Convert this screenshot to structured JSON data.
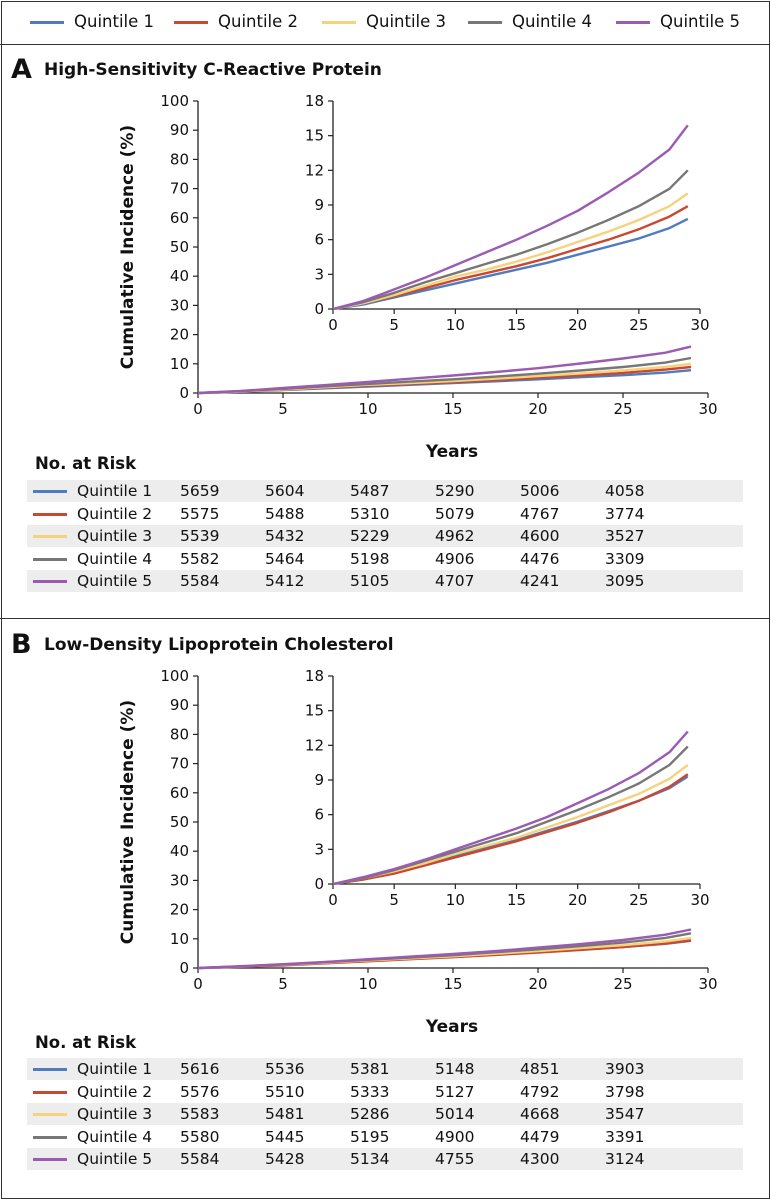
{
  "legend": [
    {
      "label": "Quintile 1",
      "color": "#4f7cc0"
    },
    {
      "label": "Quintile 2",
      "color": "#c8492f"
    },
    {
      "label": "Quintile 3",
      "color": "#f5d27e"
    },
    {
      "label": "Quintile 4",
      "color": "#777777"
    },
    {
      "label": "Quintile 5",
      "color": "#9b5bb3"
    }
  ],
  "panels": [
    {
      "letter": "A",
      "title": "High-Sensitivity C-Reactive Protein",
      "risk_title": "No. at Risk"
    },
    {
      "letter": "B",
      "title": "Low-Density Lipoprotein Cholesterol",
      "risk_title": "No. at Risk"
    }
  ],
  "chart_data": [
    {
      "type": "line",
      "title": "High-Sensitivity C-Reactive Protein",
      "xlabel": "Years",
      "ylabel": "Cumulative Incidence (%)",
      "xlim": [
        0,
        30
      ],
      "ylim": [
        0,
        100
      ],
      "xticks": [
        0,
        5,
        10,
        15,
        20,
        25,
        30
      ],
      "yticks": [
        0,
        10,
        20,
        30,
        40,
        50,
        60,
        70,
        80,
        90,
        100
      ],
      "inset": {
        "xlim": [
          0,
          30
        ],
        "ylim": [
          0,
          18
        ],
        "xticks": [
          0,
          5,
          10,
          15,
          20,
          25,
          30
        ],
        "yticks": [
          0,
          3,
          6,
          9,
          12,
          15,
          18
        ]
      },
      "x": [
        0,
        2.5,
        5,
        7.5,
        10,
        12.5,
        15,
        17.5,
        20,
        22.5,
        25,
        27.5,
        29
      ],
      "series": [
        {
          "name": "Quintile 1",
          "values": [
            0,
            0.4,
            1.0,
            1.6,
            2.2,
            2.8,
            3.4,
            4.0,
            4.7,
            5.4,
            6.1,
            7.0,
            7.8
          ]
        },
        {
          "name": "Quintile 2",
          "values": [
            0,
            0.5,
            1.1,
            1.8,
            2.5,
            3.1,
            3.7,
            4.4,
            5.2,
            6.0,
            6.9,
            8.0,
            8.9
          ]
        },
        {
          "name": "Quintile 3",
          "values": [
            0,
            0.5,
            1.2,
            2.0,
            2.8,
            3.4,
            4.1,
            4.9,
            5.8,
            6.7,
            7.7,
            8.9,
            10.0
          ]
        },
        {
          "name": "Quintile 4",
          "values": [
            0,
            0.6,
            1.4,
            2.3,
            3.1,
            3.9,
            4.7,
            5.6,
            6.6,
            7.7,
            8.9,
            10.4,
            12.0
          ]
        },
        {
          "name": "Quintile 5",
          "values": [
            0,
            0.7,
            1.7,
            2.7,
            3.8,
            4.9,
            6.0,
            7.2,
            8.5,
            10.1,
            11.8,
            13.8,
            15.9
          ]
        }
      ],
      "risk_table": {
        "rows": [
          {
            "label": "Quintile 1",
            "values": [
              "5659",
              "5604",
              "5487",
              "5290",
              "5006",
              "4058"
            ]
          },
          {
            "label": "Quintile 2",
            "values": [
              "5575",
              "5488",
              "5310",
              "5079",
              "4767",
              "3774"
            ]
          },
          {
            "label": "Quintile 3",
            "values": [
              "5539",
              "5432",
              "5229",
              "4962",
              "4600",
              "3527"
            ]
          },
          {
            "label": "Quintile 4",
            "values": [
              "5582",
              "5464",
              "5198",
              "4906",
              "4476",
              "3309"
            ]
          },
          {
            "label": "Quintile 5",
            "values": [
              "5584",
              "5412",
              "5105",
              "4707",
              "4241",
              "3095"
            ]
          }
        ]
      }
    },
    {
      "type": "line",
      "title": "Low-Density Lipoprotein Cholesterol",
      "xlabel": "Years",
      "ylabel": "Cumulative Incidence (%)",
      "xlim": [
        0,
        30
      ],
      "ylim": [
        0,
        100
      ],
      "xticks": [
        0,
        5,
        10,
        15,
        20,
        25,
        30
      ],
      "yticks": [
        0,
        10,
        20,
        30,
        40,
        50,
        60,
        70,
        80,
        90,
        100
      ],
      "inset": {
        "xlim": [
          0,
          30
        ],
        "ylim": [
          0,
          18
        ],
        "xticks": [
          0,
          5,
          10,
          15,
          20,
          25,
          30
        ],
        "yticks": [
          0,
          3,
          6,
          9,
          12,
          15,
          18
        ]
      },
      "x": [
        0,
        2.5,
        5,
        7.5,
        10,
        12.5,
        15,
        17.5,
        20,
        22.5,
        25,
        27.5,
        29
      ],
      "series": [
        {
          "name": "Quintile 1",
          "values": [
            0,
            0.4,
            1.0,
            1.7,
            2.4,
            3.1,
            3.8,
            4.6,
            5.4,
            6.3,
            7.2,
            8.3,
            9.3
          ]
        },
        {
          "name": "Quintile 2",
          "values": [
            0,
            0.4,
            0.9,
            1.6,
            2.3,
            3.0,
            3.7,
            4.5,
            5.3,
            6.2,
            7.2,
            8.4,
            9.5
          ]
        },
        {
          "name": "Quintile 3",
          "values": [
            0,
            0.5,
            1.1,
            1.8,
            2.6,
            3.3,
            4.0,
            4.9,
            5.8,
            6.8,
            7.8,
            9.1,
            10.3
          ]
        },
        {
          "name": "Quintile 4",
          "values": [
            0,
            0.5,
            1.2,
            2.0,
            2.8,
            3.6,
            4.4,
            5.4,
            6.4,
            7.5,
            8.7,
            10.3,
            11.9
          ]
        },
        {
          "name": "Quintile 5",
          "values": [
            0,
            0.6,
            1.3,
            2.1,
            3.0,
            3.9,
            4.8,
            5.8,
            7.0,
            8.2,
            9.6,
            11.4,
            13.2
          ]
        }
      ],
      "risk_table": {
        "rows": [
          {
            "label": "Quintile 1",
            "values": [
              "5616",
              "5536",
              "5381",
              "5148",
              "4851",
              "3903"
            ]
          },
          {
            "label": "Quintile 2",
            "values": [
              "5576",
              "5510",
              "5333",
              "5127",
              "4792",
              "3798"
            ]
          },
          {
            "label": "Quintile 3",
            "values": [
              "5583",
              "5481",
              "5286",
              "5014",
              "4668",
              "3547"
            ]
          },
          {
            "label": "Quintile 4",
            "values": [
              "5580",
              "5445",
              "5195",
              "4900",
              "4479",
              "3391"
            ]
          },
          {
            "label": "Quintile 5",
            "values": [
              "5584",
              "5428",
              "5134",
              "4755",
              "4300",
              "3124"
            ]
          }
        ]
      }
    }
  ]
}
